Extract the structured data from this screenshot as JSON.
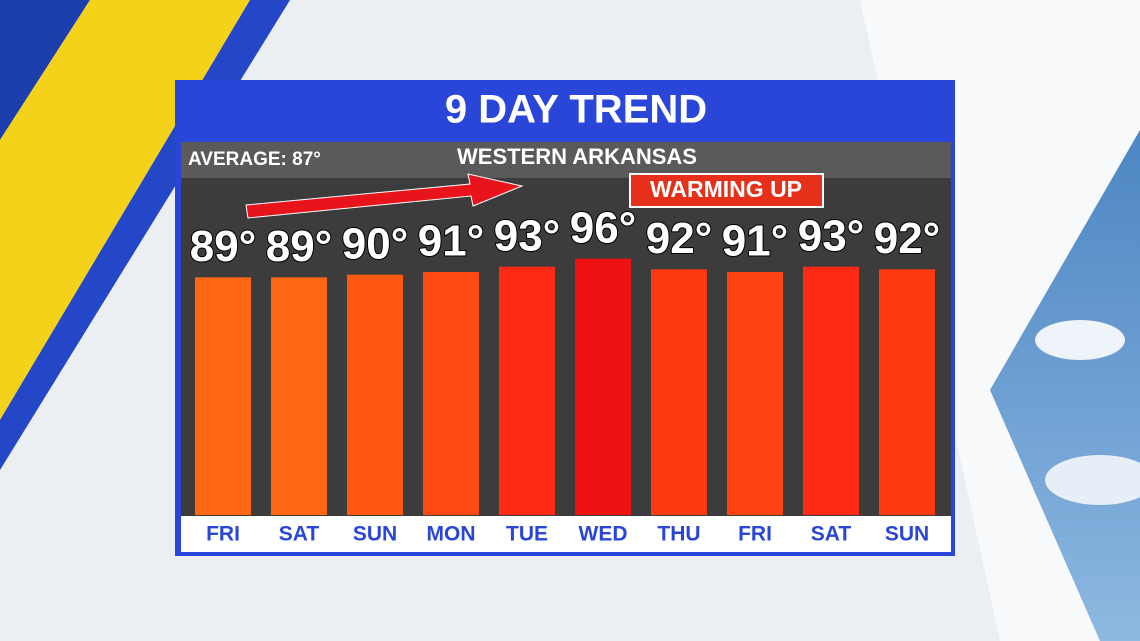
{
  "chart_data": {
    "type": "bar",
    "title": "9 DAY TREND",
    "subtitle": "WESTERN ARKANSAS",
    "annotations": [
      "AVERAGE: 87°",
      "WARMING UP"
    ],
    "categories": [
      "FRI",
      "SAT",
      "SUN",
      "MON",
      "TUE",
      "WED",
      "THU",
      "FRI",
      "SAT",
      "SUN"
    ],
    "values": [
      89,
      89,
      90,
      91,
      93,
      96,
      92,
      91,
      93,
      92
    ],
    "value_labels": [
      "89°",
      "89°",
      "90°",
      "91°",
      "93°",
      "96°",
      "92°",
      "91°",
      "93°",
      "92°"
    ],
    "colors": [
      "#ff6612",
      "#ff6612",
      "#ff5812",
      "#ff4a12",
      "#ff2a14",
      "#ee1212",
      "#ff3a12",
      "#ff4412",
      "#ff2a14",
      "#ff3a12"
    ]
  }
}
